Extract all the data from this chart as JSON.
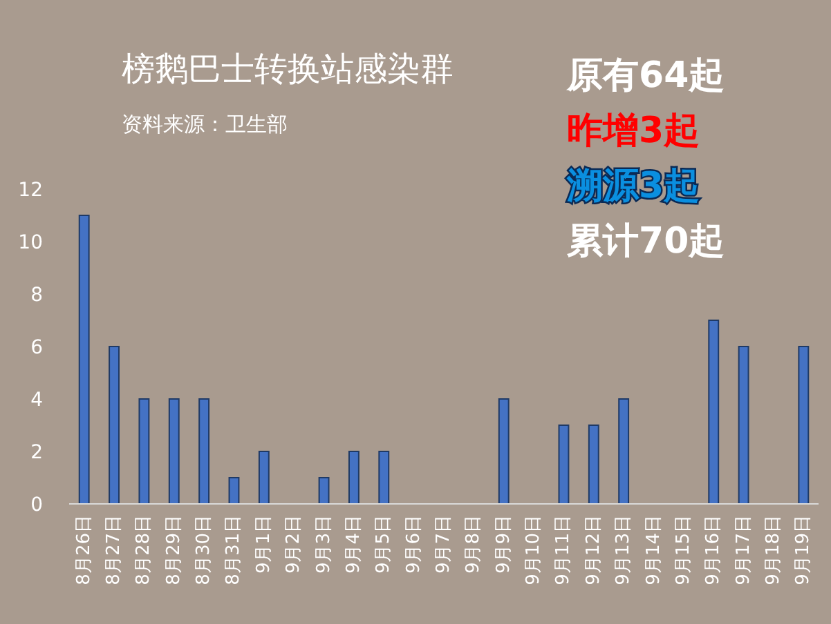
{
  "chart_data": {
    "type": "bar",
    "title": "榜鹅巴士转换站感染群",
    "subtitle": "资料来源：卫生部",
    "annotations": [
      "原有64起",
      "昨增3起",
      "溯源3起",
      "累计70起"
    ],
    "categories": [
      "8月26日",
      "8月27日",
      "8月28日",
      "8月29日",
      "8月30日",
      "8月31日",
      "9月1日",
      "9月2日",
      "9月3日",
      "9月4日",
      "9月5日",
      "9月6日",
      "9月7日",
      "9月8日",
      "9月9日",
      "9月10日",
      "9月11日",
      "9月12日",
      "9月13日",
      "9月14日",
      "9月15日",
      "9月16日",
      "9月17日",
      "9月18日",
      "9月19日"
    ],
    "values": [
      11,
      6,
      4,
      4,
      4,
      1,
      2,
      0,
      1,
      2,
      2,
      0,
      0,
      0,
      4,
      0,
      3,
      3,
      4,
      0,
      0,
      7,
      6,
      0,
      6
    ],
    "color": "#4472c4",
    "ylim": [
      0,
      12
    ],
    "yticks": [
      0,
      2,
      4,
      6,
      8,
      10,
      12
    ],
    "grid": false
  }
}
